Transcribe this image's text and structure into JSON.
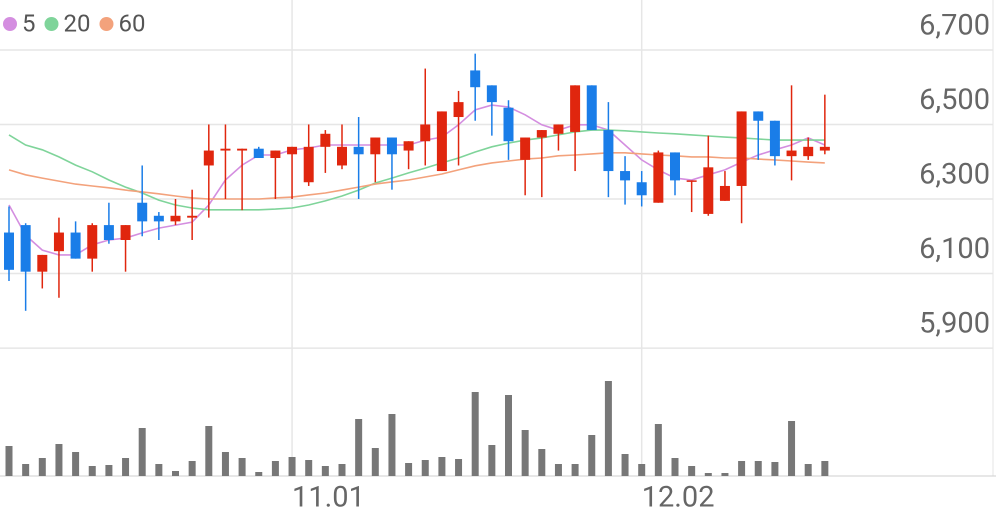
{
  "chart_data": {
    "type": "candlestick",
    "categories": [
      null,
      null,
      null,
      null,
      null,
      null,
      null,
      null,
      null,
      null,
      null,
      null,
      null,
      null,
      null,
      null,
      null,
      "11.01",
      null,
      null,
      null,
      null,
      null,
      null,
      null,
      null,
      null,
      null,
      null,
      null,
      null,
      null,
      null,
      null,
      null,
      null,
      null,
      null,
      "12.02",
      null,
      null,
      null,
      null,
      null,
      null,
      null,
      null,
      null,
      null,
      null
    ],
    "open": [
      6210,
      6230,
      6105,
      6160,
      6210,
      6140,
      6230,
      6190,
      6290,
      6255,
      6240,
      6250,
      6390,
      6430,
      6430,
      6435,
      6410,
      6420,
      6345,
      6440,
      6390,
      6440,
      6420,
      6465,
      6430,
      6455,
      6375,
      6520,
      6645,
      6605,
      6545,
      6405,
      6465,
      6475,
      6480,
      6605,
      6485,
      6375,
      6345,
      6290,
      6425,
      6348,
      6260,
      6295,
      6335,
      6535,
      6510,
      6415,
      6415,
      6430
    ],
    "high": [
      6280,
      6235,
      6150,
      6250,
      6240,
      6235,
      6290,
      6230,
      6390,
      6265,
      6300,
      6325,
      6500,
      6500,
      6435,
      6440,
      6430,
      6440,
      6500,
      6485,
      6500,
      6520,
      6465,
      6465,
      6455,
      6650,
      6535,
      6590,
      6690,
      6605,
      6565,
      6465,
      6485,
      6500,
      6605,
      6605,
      6560,
      6415,
      6375,
      6430,
      6425,
      6350,
      6470,
      6375,
      6535,
      6535,
      6510,
      6605,
      6465,
      6580
    ],
    "low": [
      6080,
      6000,
      6060,
      6035,
      6140,
      6105,
      6180,
      6105,
      6200,
      6190,
      6230,
      6190,
      6250,
      6300,
      6270,
      6410,
      6300,
      6300,
      6335,
      6370,
      6380,
      6300,
      6345,
      6325,
      6380,
      6390,
      6375,
      6390,
      6510,
      6470,
      6405,
      6310,
      6305,
      6430,
      6375,
      6485,
      6305,
      6285,
      6280,
      6290,
      6310,
      6265,
      6255,
      6295,
      6235,
      6405,
      6390,
      6350,
      6405,
      6420
    ],
    "close": [
      6110,
      6105,
      6150,
      6210,
      6140,
      6230,
      6190,
      6230,
      6240,
      6240,
      6255,
      6255,
      6430,
      6435,
      6435,
      6410,
      6430,
      6440,
      6440,
      6475,
      6440,
      6420,
      6465,
      6420,
      6455,
      6500,
      6535,
      6560,
      6600,
      6560,
      6455,
      6465,
      6485,
      6500,
      6605,
      6485,
      6375,
      6350,
      6310,
      6425,
      6350,
      6350,
      6385,
      6335,
      6535,
      6510,
      6415,
      6430,
      6440,
      6440
    ],
    "up_color": "#e0260e",
    "down_color": "#1a7de8",
    "volume": [
      30,
      12,
      18,
      32,
      24,
      10,
      11,
      18,
      48,
      12,
      5,
      15,
      50,
      24,
      18,
      4,
      15,
      19,
      16,
      10,
      12,
      57,
      28,
      62,
      13,
      16,
      19,
      17,
      84,
      31,
      81,
      46,
      27,
      12,
      12,
      41,
      95,
      22,
      12,
      52,
      18,
      10,
      3,
      3,
      15,
      15,
      14,
      55,
      12,
      15
    ],
    "volume_color": "#777777",
    "volume_ylim": [
      0,
      100
    ],
    "series": [
      {
        "name": "5",
        "color": "#d48ee0",
        "values": [
          6284,
          6203,
          6163,
          6150,
          6150,
          6177,
          6190,
          6195,
          6209,
          6222,
          6230,
          6238,
          6284,
          6351,
          6391,
          6418,
          6418,
          6432,
          6437,
          6445,
          6445,
          6445,
          6445,
          6445,
          6445,
          6458,
          6466,
          6499,
          6539,
          6552,
          6547,
          6526,
          6499,
          6485,
          6499,
          6499,
          6485,
          6445,
          6405,
          6378,
          6356,
          6351,
          6365,
          6378,
          6399,
          6418,
          6432,
          6445,
          6464,
          6445
        ]
      },
      {
        "name": "20",
        "color": "#7fd49a",
        "values": [
          6472,
          6445,
          6432,
          6413,
          6391,
          6373,
          6351,
          6332,
          6316,
          6297,
          6284,
          6276,
          6271,
          6271,
          6271,
          6271,
          6273,
          6276,
          6284,
          6295,
          6308,
          6324,
          6343,
          6356,
          6370,
          6383,
          6397,
          6410,
          6426,
          6440,
          6450,
          6458,
          6464,
          6472,
          6480,
          6485,
          6485,
          6483,
          6480,
          6477,
          6475,
          6472,
          6469,
          6466,
          6464,
          6461,
          6458,
          6458,
          6458,
          6458
        ]
      },
      {
        "name": "60",
        "color": "#f3a27c",
        "values": [
          6378,
          6365,
          6356,
          6348,
          6340,
          6335,
          6330,
          6324,
          6319,
          6314,
          6308,
          6303,
          6300,
          6300,
          6300,
          6300,
          6303,
          6305,
          6311,
          6316,
          6324,
          6332,
          6340,
          6346,
          6351,
          6359,
          6367,
          6378,
          6389,
          6397,
          6402,
          6407,
          6410,
          6416,
          6418,
          6421,
          6424,
          6424,
          6421,
          6418,
          6416,
          6413,
          6413,
          6410,
          6410,
          6407,
          6405,
          6402,
          6399,
          6397
        ]
      }
    ],
    "ylim": [
      5868,
      6834
    ],
    "yticks": [
      {
        "value": 5900,
        "label": "5,900"
      },
      {
        "value": 6100,
        "label": "6,100"
      },
      {
        "value": 6300,
        "label": "6,300"
      },
      {
        "value": 6500,
        "label": "6,500"
      },
      {
        "value": 6700,
        "label": "6,700"
      }
    ],
    "grid": true
  }
}
